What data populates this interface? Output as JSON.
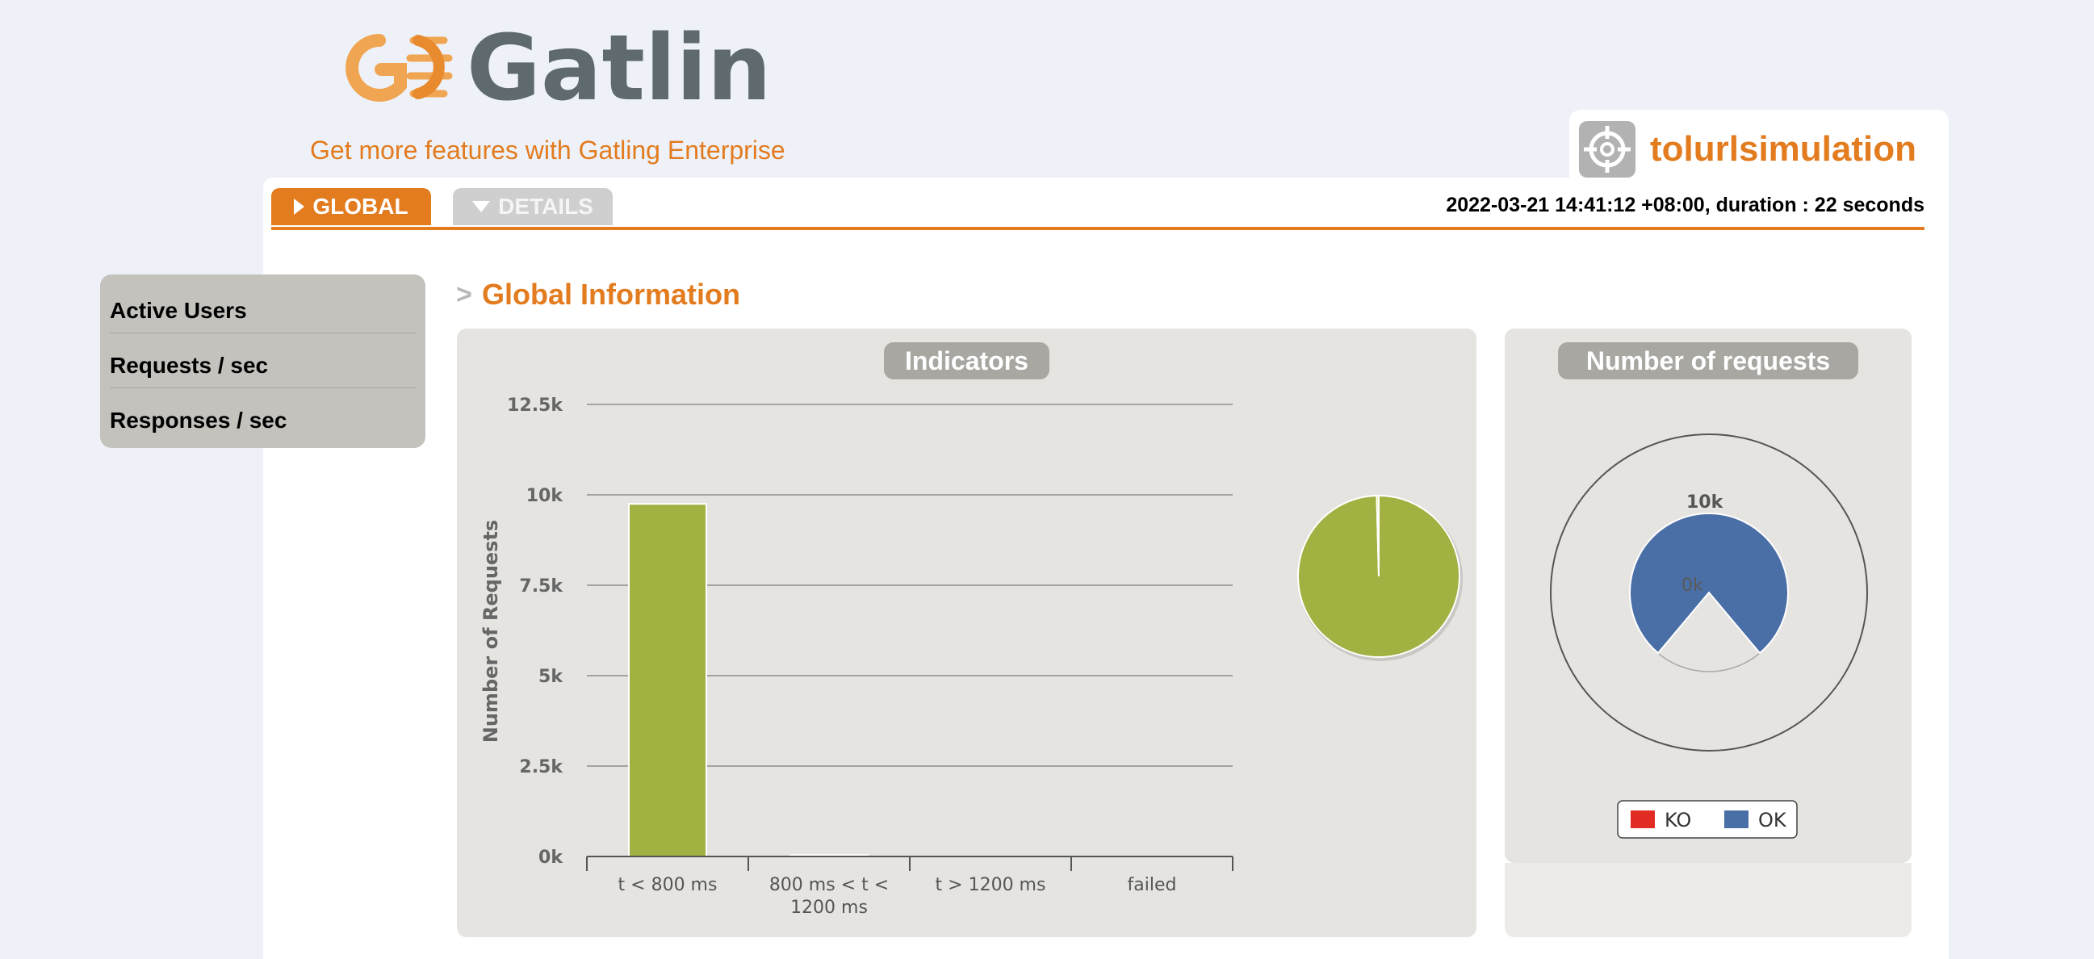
{
  "brand": {
    "name": "Gatling",
    "promo": "Get more features with Gatling Enterprise",
    "colors": {
      "orange": "#e37b1f",
      "gray": "#5f6a6e",
      "light_orange": "#f0a552"
    }
  },
  "simulation": {
    "name": "tolurlsimulation",
    "icon": "target-icon"
  },
  "tabs": [
    {
      "label": "GLOBAL",
      "icon": "triangle-right-icon",
      "active": true
    },
    {
      "label": "DETAILS",
      "icon": "triangle-down-icon",
      "active": false
    }
  ],
  "run_info": "2022-03-21 14:41:12 +08:00, duration : 22 seconds",
  "sidebar": {
    "items": [
      {
        "label": "Active Users"
      },
      {
        "label": "Requests / sec"
      },
      {
        "label": "Responses / sec"
      }
    ]
  },
  "section": {
    "arrow": ">",
    "title": "Global Information"
  },
  "indicators": {
    "title": "Indicators",
    "ylabel": "Number of Requests",
    "chart_data": {
      "type": "bar",
      "categories": [
        "t < 800 ms",
        "800 ms < t < 1200 ms",
        "t > 1200 ms",
        "failed"
      ],
      "category_lines": [
        [
          "t < 800 ms"
        ],
        [
          "800 ms < t <",
          "1200 ms"
        ],
        [
          "t > 1200 ms"
        ],
        [
          "failed"
        ]
      ],
      "values": [
        9750,
        40,
        0,
        0
      ],
      "bar_colors": [
        "#a2b142",
        "#f1e24a",
        "#f1a33c",
        "#e94a3a"
      ],
      "yticks": [
        "0k",
        "2.5k",
        "5k",
        "7.5k",
        "10k",
        "12.5k"
      ],
      "ytick_values": [
        0,
        2500,
        5000,
        7500,
        10000,
        12500
      ],
      "ylim": [
        0,
        12500
      ],
      "grid": true
    },
    "pie": {
      "type": "pie",
      "values": [
        9750,
        40,
        0,
        0
      ],
      "colors": [
        "#a2b142",
        "#f1e24a",
        "#f1a33c",
        "#e94a3a"
      ]
    }
  },
  "requests": {
    "title": "Number of requests",
    "chart_data": {
      "type": "pie",
      "series": [
        {
          "name": "OK",
          "value": 9790,
          "color": "#4a6fa6"
        },
        {
          "name": "KO",
          "value": 0,
          "color": "#e22b22"
        }
      ],
      "scale_labels": [
        "10k",
        "0k"
      ]
    },
    "legend": [
      {
        "label": "KO",
        "color": "#e22b22"
      },
      {
        "label": "OK",
        "color": "#4a6fa6"
      }
    ]
  }
}
